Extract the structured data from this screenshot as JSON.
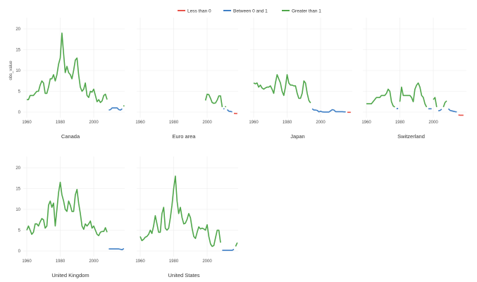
{
  "chart_data": {
    "type": "line",
    "layout": "small-multiples",
    "ylabel": "obs_value",
    "xlabel": "",
    "xlim": [
      1959,
      2018.5
    ],
    "ylim": [
      -1,
      22
    ],
    "x_ticks": [
      1960,
      1980,
      2000
    ],
    "y_ticks": [
      0,
      5,
      10,
      15,
      20
    ],
    "grid": true,
    "legend": {
      "position": "top",
      "entries": [
        {
          "label": "Less than 0",
          "color": "#e8534a"
        },
        {
          "label": "Between 0 and 1",
          "color": "#3f7fc5"
        },
        {
          "label": "Greater than 1",
          "color": "#4fa64a"
        }
      ]
    },
    "x": [
      1960,
      1961,
      1962,
      1963,
      1964,
      1965,
      1966,
      1967,
      1968,
      1969,
      1970,
      1971,
      1972,
      1973,
      1974,
      1975,
      1976,
      1977,
      1978,
      1979,
      1980,
      1981,
      1982,
      1983,
      1984,
      1985,
      1986,
      1987,
      1988,
      1989,
      1990,
      1991,
      1992,
      1993,
      1994,
      1995,
      1996,
      1997,
      1998,
      1999,
      2000,
      2001,
      2002,
      2003,
      2004,
      2005,
      2006,
      2007,
      2008,
      2009,
      2010,
      2011,
      2012,
      2013,
      2014,
      2015,
      2016,
      2017,
      2018
    ],
    "panels": [
      {
        "name": "Canada",
        "y": [
          3,
          3,
          4,
          4,
          4,
          4.5,
          5,
          5,
          6.5,
          7.5,
          7,
          4.5,
          4.5,
          6,
          8,
          8,
          9,
          7.5,
          9,
          11.5,
          13,
          19,
          14,
          9.5,
          11,
          9.5,
          9,
          8,
          10,
          12.5,
          13,
          9,
          6,
          5,
          5.5,
          7,
          4,
          3.5,
          5,
          4.8,
          5.5,
          4,
          2.5,
          3,
          2.3,
          2.7,
          4,
          4.3,
          3,
          0.5,
          0.6,
          1,
          1,
          1,
          1,
          0.6,
          0.5,
          0.8,
          1.5
        ]
      },
      {
        "name": "Euro area",
        "x": [
          1999,
          2000,
          2001,
          2002,
          2003,
          2004,
          2005,
          2006,
          2007,
          2008,
          2009,
          2010,
          2011,
          2012,
          2013,
          2014,
          2015,
          2016,
          2017,
          2018
        ],
        "y": [
          2.8,
          4.3,
          4.2,
          3.3,
          2.3,
          2.1,
          2.2,
          2.9,
          3.9,
          3.9,
          1.2,
          0.8,
          1.3,
          0.6,
          0.2,
          0.15,
          0.05,
          -0.3,
          -0.35,
          -0.35
        ]
      },
      {
        "name": "Japan",
        "y": [
          7,
          6.8,
          7,
          6,
          6.5,
          5.8,
          5.5,
          5.8,
          6,
          6,
          6.3,
          5.5,
          4.5,
          7,
          9,
          8,
          7,
          5,
          4,
          6,
          9,
          7,
          6.5,
          6.5,
          6.3,
          6.3,
          4.5,
          3.3,
          3.3,
          4.5,
          7.5,
          7,
          4.5,
          2.8,
          2.2,
          0.8,
          0.5,
          0.5,
          0.4,
          0.05,
          0.2,
          0.05,
          0.01,
          0.01,
          0.01,
          0.01,
          0.3,
          0.6,
          0.5,
          0.1,
          0.1,
          0.1,
          0.1,
          0.1,
          0.05,
          0.05,
          -0.05,
          -0.05,
          -0.05
        ]
      },
      {
        "name": "Switzerland",
        "y": [
          2,
          2,
          2,
          2,
          2.5,
          3,
          3.5,
          3.5,
          3.5,
          4,
          4,
          4,
          4.5,
          5.5,
          5,
          2.5,
          1.5,
          1.2,
          0.8,
          0.9,
          2.5,
          6,
          4,
          4,
          4,
          4,
          4,
          3.5,
          2.5,
          5.5,
          6.5,
          7,
          6,
          4,
          3.5,
          2,
          1.2,
          0.8,
          0.8,
          0.8,
          3,
          3.5,
          1.2,
          0.3,
          0.4,
          0.7,
          1.2,
          2.3,
          2.7,
          0.8,
          0.4,
          0.3,
          0.2,
          0.1,
          0.05,
          -0.7,
          -0.75,
          -0.75,
          -0.75
        ]
      },
      {
        "name": "United Kingdom",
        "y": [
          5,
          6,
          5,
          4,
          4.5,
          6.5,
          6.5,
          6,
          7,
          7.8,
          7.5,
          5.5,
          6,
          11,
          12,
          10.5,
          11.5,
          6,
          10,
          14,
          16.5,
          13.5,
          12,
          10,
          9.5,
          12,
          11,
          9.5,
          9.5,
          13.5,
          14.8,
          11.5,
          9,
          6,
          5.2,
          6.5,
          6,
          6.5,
          7.2,
          5.5,
          6,
          5,
          4,
          3.7,
          4.5,
          4.7,
          4.7,
          5.6,
          4.5,
          0.5,
          0.5,
          0.5,
          0.5,
          0.5,
          0.5,
          0.5,
          0.4,
          0.3,
          0.6
        ]
      },
      {
        "name": "United States",
        "y": [
          3.5,
          2.5,
          2.8,
          3.3,
          3.5,
          4,
          5,
          4.2,
          6,
          8.5,
          6.5,
          4.5,
          4.5,
          9,
          10.5,
          5.5,
          5,
          5.5,
          8,
          11,
          15,
          18,
          12,
          9,
          10.5,
          8,
          6.5,
          6.7,
          7.6,
          9,
          8,
          5.5,
          3.5,
          3,
          4.5,
          5.8,
          5.3,
          5.5,
          5.3,
          5,
          6.3,
          3.5,
          1.7,
          1.1,
          1.3,
          3.2,
          5,
          5,
          2,
          0.15,
          0.15,
          0.15,
          0.15,
          0.15,
          0.15,
          0.15,
          0.4,
          1.1,
          2
        ]
      }
    ]
  }
}
